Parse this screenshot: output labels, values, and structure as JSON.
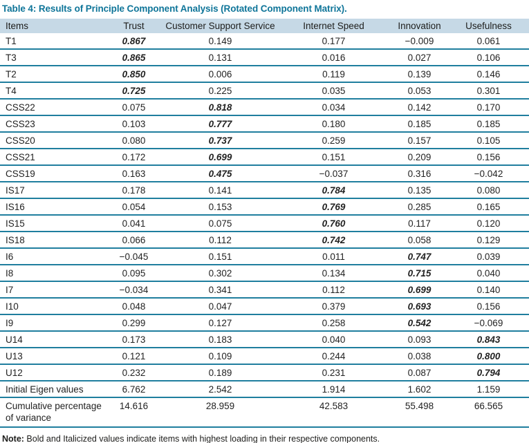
{
  "title": "Table 4: Results of Principle Component Analysis (Rotated Component Matrix).",
  "table": {
    "columns": [
      "Items",
      "Trust",
      "Customer Support Service",
      "Internet Speed",
      "Innovation",
      "Usefulness"
    ],
    "rows": [
      {
        "item": "T1",
        "values": [
          "0.867",
          "0.149",
          "0.177",
          "−0.009",
          "0.061"
        ],
        "bold_index": 0
      },
      {
        "item": "T3",
        "values": [
          "0.865",
          "0.131",
          "0.016",
          "0.027",
          "0.106"
        ],
        "bold_index": 0
      },
      {
        "item": "T2",
        "values": [
          "0.850",
          "0.006",
          "0.119",
          "0.139",
          "0.146"
        ],
        "bold_index": 0
      },
      {
        "item": "T4",
        "values": [
          "0.725",
          "0.225",
          "0.035",
          "0.053",
          "0.301"
        ],
        "bold_index": 0
      },
      {
        "item": "CSS22",
        "values": [
          "0.075",
          "0.818",
          "0.034",
          "0.142",
          "0.170"
        ],
        "bold_index": 1
      },
      {
        "item": "CSS23",
        "values": [
          "0.103",
          "0.777",
          "0.180",
          "0.185",
          "0.185"
        ],
        "bold_index": 1
      },
      {
        "item": "CSS20",
        "values": [
          "0.080",
          "0.737",
          "0.259",
          "0.157",
          "0.105"
        ],
        "bold_index": 1
      },
      {
        "item": "CSS21",
        "values": [
          "0.172",
          "0.699",
          "0.151",
          "0.209",
          "0.156"
        ],
        "bold_index": 1
      },
      {
        "item": "CSS19",
        "values": [
          "0.163",
          "0.475",
          "−0.037",
          "0.316",
          "−0.042"
        ],
        "bold_index": 1
      },
      {
        "item": "IS17",
        "values": [
          "0.178",
          "0.141",
          "0.784",
          "0.135",
          "0.080"
        ],
        "bold_index": 2
      },
      {
        "item": "IS16",
        "values": [
          "0.054",
          "0.153",
          "0.769",
          "0.285",
          "0.165"
        ],
        "bold_index": 2
      },
      {
        "item": "IS15",
        "values": [
          "0.041",
          "0.075",
          "0.760",
          "0.117",
          "0.120"
        ],
        "bold_index": 2
      },
      {
        "item": "IS18",
        "values": [
          "0.066",
          "0.112",
          "0.742",
          "0.058",
          "0.129"
        ],
        "bold_index": 2
      },
      {
        "item": "I6",
        "values": [
          "−0.045",
          "0.151",
          "0.011",
          "0.747",
          "0.039"
        ],
        "bold_index": 3
      },
      {
        "item": "I8",
        "values": [
          "0.095",
          "0.302",
          "0.134",
          "0.715",
          "0.040"
        ],
        "bold_index": 3
      },
      {
        "item": "I7",
        "values": [
          "−0.034",
          "0.341",
          "0.112",
          "0.699",
          "0.140"
        ],
        "bold_index": 3
      },
      {
        "item": "I10",
        "values": [
          "0.048",
          "0.047",
          "0.379",
          "0.693",
          "0.156"
        ],
        "bold_index": 3
      },
      {
        "item": "I9",
        "values": [
          "0.299",
          "0.127",
          "0.258",
          "0.542",
          "−0.069"
        ],
        "bold_index": 3
      },
      {
        "item": "U14",
        "values": [
          "0.173",
          "0.183",
          "0.040",
          "0.093",
          "0.843"
        ],
        "bold_index": 4
      },
      {
        "item": "U13",
        "values": [
          "0.121",
          "0.109",
          "0.244",
          "0.038",
          "0.800"
        ],
        "bold_index": 4
      },
      {
        "item": "U12",
        "values": [
          "0.232",
          "0.189",
          "0.231",
          "0.087",
          "0.794"
        ],
        "bold_index": 4
      },
      {
        "item": "Initial Eigen values",
        "values": [
          "6.762",
          "2.542",
          "1.914",
          "1.602",
          "1.159"
        ],
        "bold_index": -1
      },
      {
        "item": "Cumulative percentage of variance",
        "values": [
          "14.616",
          "28.959",
          "42.583",
          "55.498",
          "66.565"
        ],
        "bold_index": -1,
        "tall": true
      }
    ]
  },
  "note": {
    "label": "Note:",
    "text": " Bold and Italicized values indicate items with highest loading in their respective components."
  },
  "colors": {
    "title": "#0f7599",
    "header_bg": "#c6d9e6",
    "divider": "#1f7e9e",
    "text": "#222222"
  }
}
